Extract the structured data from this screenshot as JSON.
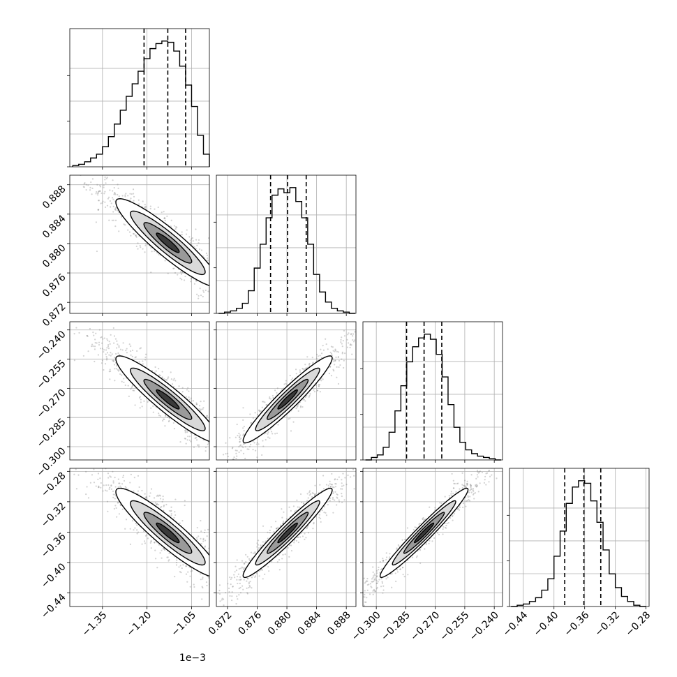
{
  "chart_data": {
    "type": "corner",
    "colors": {
      "line": "#000000",
      "grid": "#b0b0b0",
      "points": "#7f7f7f"
    },
    "grid": true,
    "parameters": [
      {
        "range": [
          -1.46,
          -0.99
        ],
        "ticks": [
          -1.35,
          -1.2,
          -1.05
        ],
        "tick_labels": [
          "−1.35",
          "−1.20",
          "−1.05"
        ],
        "offset_label": "1e−3",
        "quantiles": [
          -1.21,
          -1.13,
          -1.07
        ],
        "hist_x": [
          -1.44,
          -1.42,
          -1.4,
          -1.38,
          -1.36,
          -1.34,
          -1.32,
          -1.3,
          -1.28,
          -1.26,
          -1.24,
          -1.22,
          -1.2,
          -1.18,
          -1.16,
          -1.14,
          -1.12,
          -1.1,
          -1.08,
          -1.06,
          -1.04,
          -1.02,
          -1.0
        ],
        "hist_y": [
          1,
          2,
          4,
          7,
          10,
          16,
          24,
          34,
          45,
          56,
          66,
          76,
          86,
          94,
          98,
          100,
          99,
          92,
          80,
          65,
          48,
          25,
          10
        ]
      },
      {
        "range": [
          0.8705,
          0.8893
        ],
        "ticks": [
          0.872,
          0.876,
          0.88,
          0.884,
          0.888
        ],
        "tick_labels": [
          "0.872",
          "0.876",
          "0.880",
          "0.884",
          "0.888"
        ],
        "quantiles": [
          0.8778,
          0.8801,
          0.8826
        ],
        "hist_x": [
          0.8712,
          0.872,
          0.8728,
          0.8736,
          0.8744,
          0.8752,
          0.876,
          0.8768,
          0.8776,
          0.8784,
          0.8792,
          0.88,
          0.8808,
          0.8816,
          0.8824,
          0.8832,
          0.884,
          0.8848,
          0.8856,
          0.8864,
          0.8872,
          0.888,
          0.8888
        ],
        "hist_y": [
          0,
          1,
          2,
          4,
          8,
          18,
          36,
          55,
          76,
          94,
          99,
          96,
          100,
          89,
          76,
          55,
          31,
          17,
          9,
          4,
          2,
          1,
          0
        ]
      },
      {
        "range": [
          -0.3068,
          -0.2358
        ],
        "ticks": [
          -0.3,
          -0.285,
          -0.27,
          -0.255,
          -0.24
        ],
        "tick_labels": [
          "−0.300",
          "−0.285",
          "−0.270",
          "−0.255",
          "−0.240"
        ],
        "quantiles": [
          -0.2846,
          -0.2757,
          -0.2667
        ],
        "hist_x": [
          -0.304,
          -0.301,
          -0.298,
          -0.295,
          -0.292,
          -0.289,
          -0.286,
          -0.283,
          -0.28,
          -0.277,
          -0.274,
          -0.271,
          -0.268,
          -0.265,
          -0.262,
          -0.259,
          -0.256,
          -0.253,
          -0.25,
          -0.247,
          -0.244,
          -0.241,
          -0.238
        ],
        "hist_y": [
          0,
          2,
          4,
          10,
          22,
          39,
          59,
          78,
          90,
          97,
          100,
          96,
          84,
          66,
          44,
          26,
          14,
          8,
          5,
          3,
          2,
          1,
          0
        ]
      },
      {
        "range": [
          -0.458,
          -0.276
        ],
        "ticks": [
          -0.44,
          -0.4,
          -0.36,
          -0.32,
          -0.28
        ],
        "tick_labels": [
          "−0.44",
          "−0.40",
          "−0.36",
          "−0.32",
          "−0.28"
        ],
        "quantiles": [
          -0.386,
          -0.361,
          -0.339
        ],
        "hist_x": [
          -0.452,
          -0.444,
          -0.436,
          -0.428,
          -0.42,
          -0.412,
          -0.404,
          -0.396,
          -0.388,
          -0.38,
          -0.372,
          -0.364,
          -0.356,
          -0.348,
          -0.34,
          -0.332,
          -0.324,
          -0.316,
          -0.308,
          -0.3,
          -0.292,
          -0.284
        ],
        "hist_y": [
          0,
          1,
          2,
          4,
          7,
          13,
          22,
          40,
          60,
          82,
          95,
          100,
          98,
          84,
          67,
          45,
          26,
          15,
          8,
          4,
          1,
          0
        ]
      }
    ],
    "correlations": {
      "1-0": -0.92,
      "2-0": -0.93,
      "2-1": 0.95,
      "3-0": -0.92,
      "3-1": 0.96,
      "3-2": 0.97
    }
  }
}
